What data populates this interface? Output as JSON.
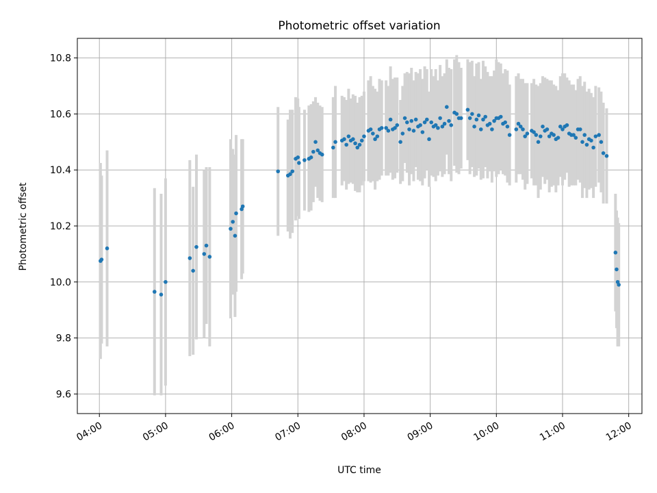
{
  "chart_data": {
    "type": "scatter",
    "title": "Photometric offset variation",
    "xlabel": "UTC time",
    "ylabel": "Photometric offset",
    "xlim": [
      "03:40",
      "12:12"
    ],
    "ylim": [
      9.53,
      10.87
    ],
    "x_ticks": [
      "04:00",
      "05:00",
      "06:00",
      "07:00",
      "08:00",
      "09:00",
      "10:00",
      "11:00",
      "12:00"
    ],
    "y_ticks": [
      "9.6",
      "9.8",
      "10.0",
      "10.2",
      "10.4",
      "10.6",
      "10.8"
    ],
    "grid": true,
    "legend": "none",
    "colors": {
      "points": "#1f77b4",
      "errorbars": "#d3d3d3",
      "grid": "#b0b0b0"
    },
    "series": [
      {
        "x": [
          "04:01",
          "04:02",
          "04:07",
          "04:50",
          "04:56",
          "05:00",
          "05:22",
          "05:25",
          "05:28",
          "05:35",
          "05:37",
          "05:40",
          "05:59",
          "06:01",
          "06:03",
          "06:04",
          "06:09",
          "06:10",
          "06:42",
          "06:51",
          "06:53",
          "06:55",
          "06:58",
          "07:00",
          "07:01",
          "07:06",
          "07:10",
          "07:12",
          "07:14",
          "07:16",
          "07:18",
          "07:20",
          "07:22",
          "07:32",
          "07:34",
          "07:40",
          "07:42",
          "07:44",
          "07:46",
          "07:48",
          "07:50",
          "07:52",
          "07:54",
          "07:56",
          "07:58",
          "08:00",
          "08:04",
          "08:06",
          "08:08",
          "08:10",
          "08:12",
          "08:14",
          "08:16",
          "08:20",
          "08:22",
          "08:24",
          "08:26",
          "08:28",
          "08:30",
          "08:33",
          "08:35",
          "08:37",
          "08:39",
          "08:41",
          "08:43",
          "08:45",
          "08:47",
          "08:49",
          "08:51",
          "08:53",
          "08:55",
          "08:57",
          "08:59",
          "09:01",
          "09:03",
          "09:05",
          "09:07",
          "09:09",
          "09:11",
          "09:13",
          "09:15",
          "09:17",
          "09:19",
          "09:22",
          "09:24",
          "09:26",
          "09:28",
          "09:34",
          "09:36",
          "09:38",
          "09:40",
          "09:42",
          "09:44",
          "09:46",
          "09:48",
          "09:50",
          "09:52",
          "09:54",
          "09:56",
          "09:58",
          "10:00",
          "10:02",
          "10:04",
          "10:06",
          "10:08",
          "10:10",
          "10:12",
          "10:18",
          "10:20",
          "10:22",
          "10:24",
          "10:26",
          "10:28",
          "10:32",
          "10:34",
          "10:36",
          "10:38",
          "10:40",
          "10:42",
          "10:44",
          "10:46",
          "10:48",
          "10:50",
          "10:52",
          "10:54",
          "10:56",
          "10:58",
          "11:00",
          "11:02",
          "11:04",
          "11:06",
          "11:08",
          "11:10",
          "11:12",
          "11:14",
          "11:16",
          "11:18",
          "11:20",
          "11:22",
          "11:24",
          "11:26",
          "11:28",
          "11:30",
          "11:33",
          "11:35",
          "11:37",
          "11:40",
          "11:48",
          "11:49",
          "11:50",
          "11:51"
        ],
        "y": [
          10.075,
          10.08,
          10.12,
          9.965,
          9.955,
          10.0,
          10.085,
          10.04,
          10.125,
          10.1,
          10.13,
          10.09,
          10.19,
          10.215,
          10.165,
          10.245,
          10.26,
          10.27,
          10.395,
          10.38,
          10.385,
          10.395,
          10.44,
          10.445,
          10.425,
          10.435,
          10.44,
          10.445,
          10.465,
          10.5,
          10.47,
          10.46,
          10.455,
          10.48,
          10.5,
          10.505,
          10.51,
          10.49,
          10.52,
          10.505,
          10.51,
          10.495,
          10.48,
          10.49,
          10.505,
          10.52,
          10.54,
          10.545,
          10.53,
          10.51,
          10.52,
          10.545,
          10.55,
          10.55,
          10.54,
          10.58,
          10.545,
          10.55,
          10.56,
          10.5,
          10.53,
          10.585,
          10.57,
          10.545,
          10.575,
          10.54,
          10.58,
          10.555,
          10.56,
          10.535,
          10.57,
          10.58,
          10.51,
          10.57,
          10.555,
          10.56,
          10.55,
          10.585,
          10.555,
          10.565,
          10.625,
          10.575,
          10.56,
          10.605,
          10.6,
          10.585,
          10.585,
          10.615,
          10.585,
          10.6,
          10.555,
          10.58,
          10.595,
          10.545,
          10.58,
          10.59,
          10.56,
          10.565,
          10.545,
          10.575,
          10.585,
          10.585,
          10.59,
          10.565,
          10.57,
          10.555,
          10.525,
          10.545,
          10.565,
          10.555,
          10.545,
          10.52,
          10.53,
          10.54,
          10.535,
          10.525,
          10.5,
          10.52,
          10.555,
          10.54,
          10.545,
          10.52,
          10.53,
          10.525,
          10.51,
          10.515,
          10.555,
          10.545,
          10.555,
          10.56,
          10.53,
          10.525,
          10.525,
          10.515,
          10.545,
          10.545,
          10.5,
          10.525,
          10.49,
          10.51,
          10.505,
          10.48,
          10.52,
          10.525,
          10.5,
          10.46,
          10.45,
          10.105,
          10.045,
          10.0,
          9.99
        ],
        "err": [
          0.35,
          0.3,
          0.35,
          0.37,
          0.36,
          0.37,
          0.35,
          0.3,
          0.33,
          0.3,
          0.28,
          0.32,
          0.32,
          0.26,
          0.29,
          0.28,
          0.25,
          0.24,
          0.23,
          0.2,
          0.23,
          0.22,
          0.22,
          0.21,
          0.2,
          0.18,
          0.19,
          0.19,
          0.18,
          0.16,
          0.17,
          0.17,
          0.17,
          0.18,
          0.2,
          0.16,
          0.15,
          0.16,
          0.17,
          0.15,
          0.16,
          0.17,
          0.16,
          0.17,
          0.16,
          0.16,
          0.18,
          0.19,
          0.17,
          0.18,
          0.16,
          0.18,
          0.17,
          0.17,
          0.16,
          0.19,
          0.18,
          0.18,
          0.17,
          0.15,
          0.17,
          0.16,
          0.18,
          0.2,
          0.19,
          0.18,
          0.17,
          0.19,
          0.2,
          0.19,
          0.2,
          0.18,
          0.17,
          0.19,
          0.18,
          0.2,
          0.17,
          0.19,
          0.18,
          0.18,
          0.17,
          0.19,
          0.2,
          0.19,
          0.21,
          0.2,
          0.18,
          0.18,
          0.2,
          0.19,
          0.18,
          0.2,
          0.19,
          0.18,
          0.21,
          0.18,
          0.19,
          0.17,
          0.19,
          0.18,
          0.21,
          0.2,
          0.19,
          0.18,
          0.19,
          0.2,
          0.18,
          0.19,
          0.18,
          0.17,
          0.18,
          0.19,
          0.18,
          0.17,
          0.19,
          0.18,
          0.2,
          0.19,
          0.18,
          0.19,
          0.18,
          0.2,
          0.19,
          0.18,
          0.19,
          0.17,
          0.18,
          0.2,
          0.19,
          0.17,
          0.19,
          0.18,
          0.18,
          0.17,
          0.18,
          0.19,
          0.2,
          0.19,
          0.19,
          0.18,
          0.17,
          0.18,
          0.18,
          0.17,
          0.18,
          0.18,
          0.17,
          0.21,
          0.21,
          0.23,
          0.22
        ]
      }
    ]
  }
}
